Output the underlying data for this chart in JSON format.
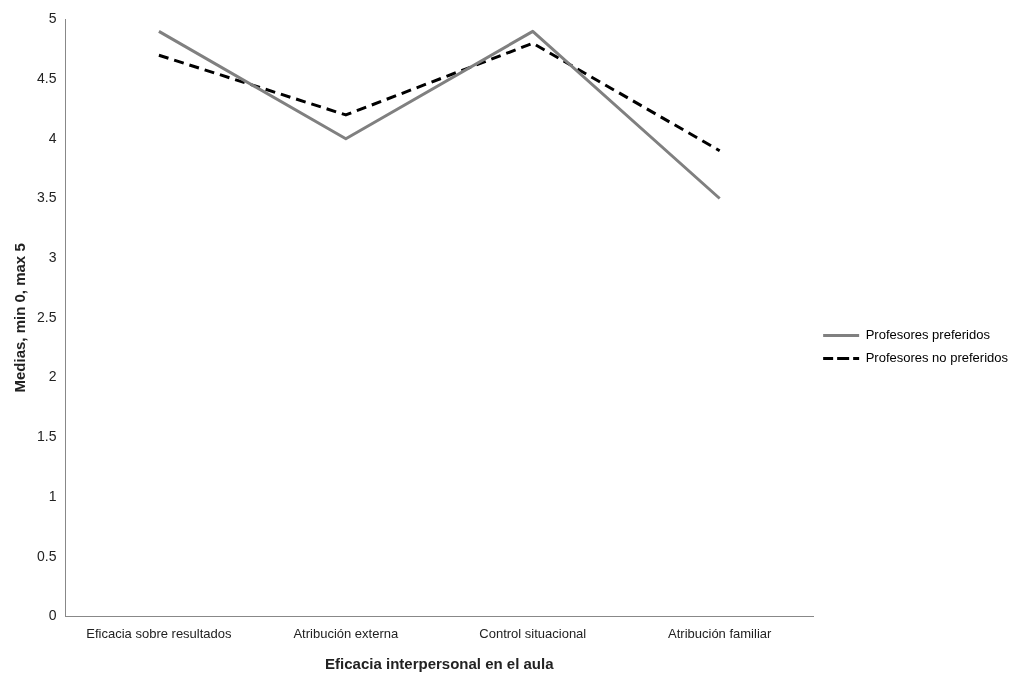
{
  "chart_data": {
    "type": "line",
    "xlabel": "Eficacia interpersonal en el aula",
    "ylabel": "Medias, min 0, max 5",
    "categories": [
      "Eficacia sobre resultados",
      "Atribución externa",
      "Control situacional",
      "Atribución familiar"
    ],
    "series": [
      {
        "name": "Profesores preferidos",
        "color": "#808080",
        "values": [
          4.9,
          4.0,
          4.9,
          3.5
        ],
        "line_style": "solid"
      },
      {
        "name": "Profesores no preferidos",
        "color": "#000000",
        "values": [
          4.7,
          4.2,
          4.8,
          3.9
        ],
        "line_style": "dashed"
      }
    ],
    "ylim": [
      0,
      5
    ],
    "yticks": [
      0,
      0.5,
      1,
      1.5,
      2,
      2.5,
      3,
      3.5,
      4,
      4.5,
      5
    ],
    "grid": false,
    "legend": "right",
    "marker": "none"
  }
}
